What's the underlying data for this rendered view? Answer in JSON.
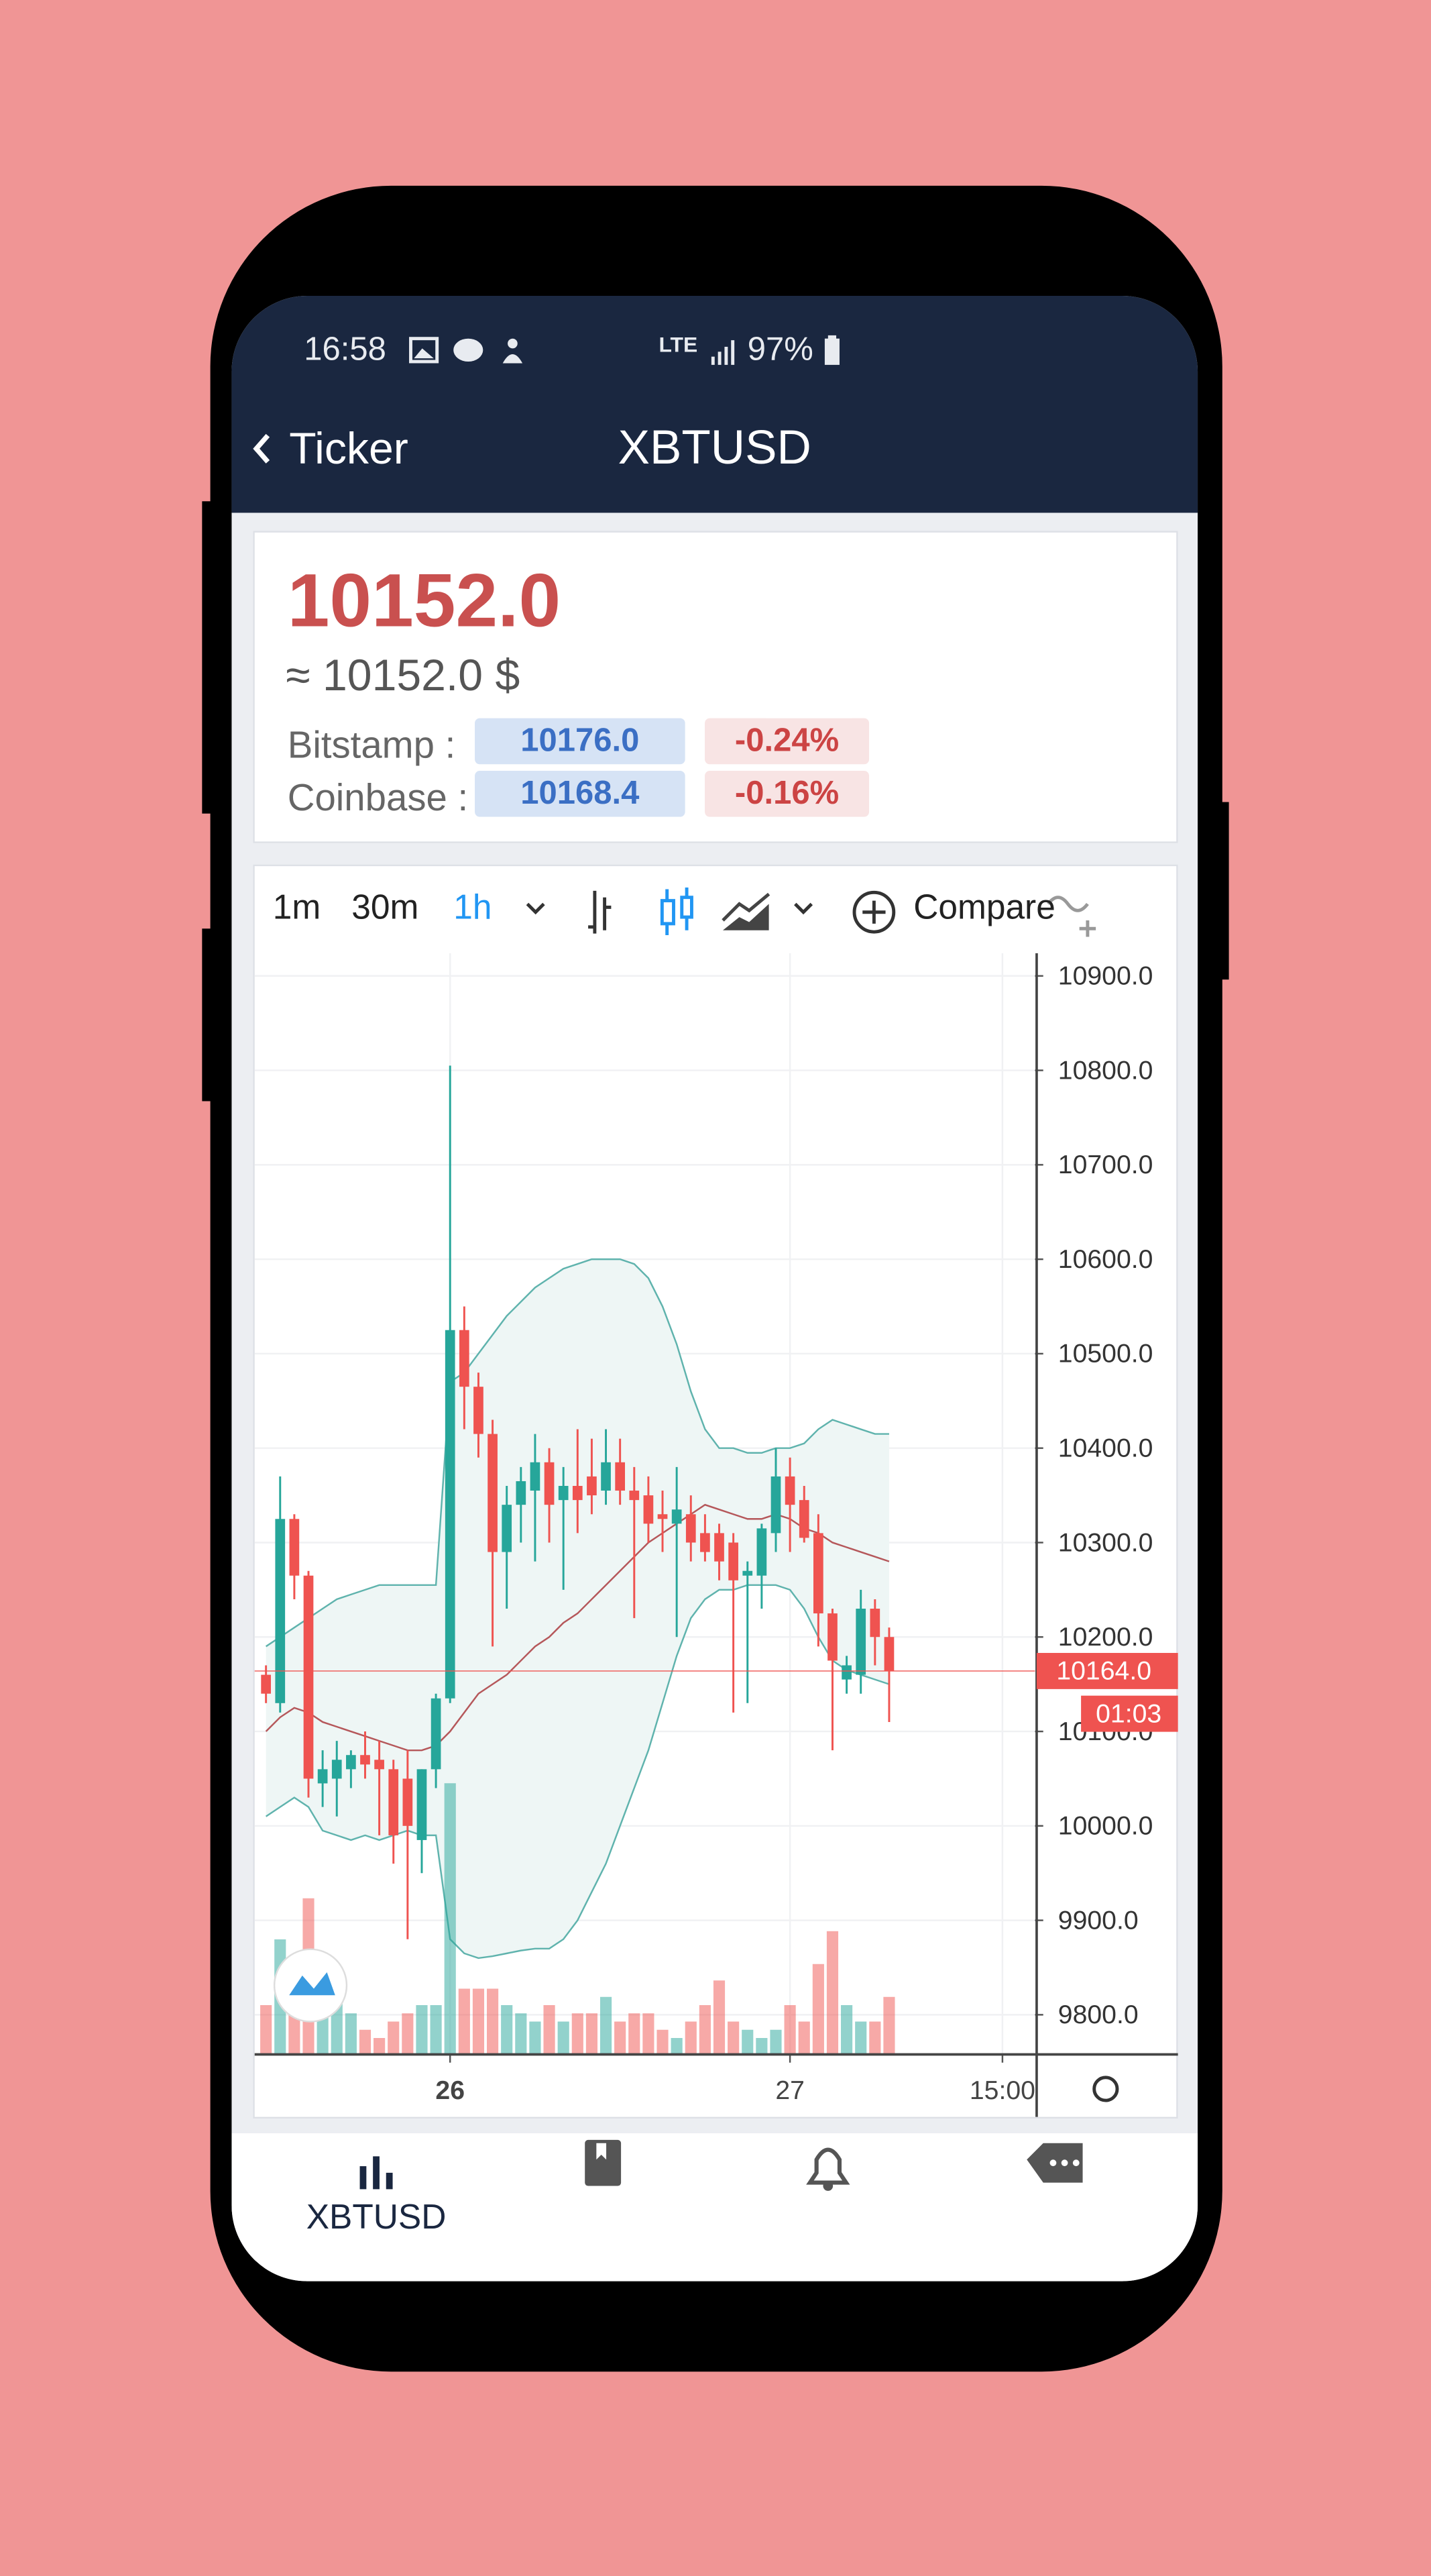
{
  "status_bar": {
    "time": "16:58",
    "network": "LTE",
    "battery": "97%"
  },
  "header": {
    "back": "Ticker",
    "title": "XBTUSD"
  },
  "price_panel": {
    "last": "10152.0",
    "usd": "≈ 10152.0 $",
    "exchanges": [
      {
        "name": "Bitstamp :",
        "price": "10176.0",
        "change": "-0.24%"
      },
      {
        "name": "Coinbase :",
        "price": "10168.4",
        "change": "-0.16%"
      }
    ]
  },
  "toolbar": {
    "intervals": [
      "1m",
      "30m",
      "1h"
    ],
    "active_interval": 2,
    "compare": "Compare"
  },
  "chart_data": {
    "type": "candlestick",
    "x": [
      -13,
      -12,
      -11,
      -10,
      -9,
      -8,
      -7,
      -6,
      -5,
      -4,
      -3,
      -2,
      -1,
      0,
      1,
      2,
      3,
      4,
      5,
      6,
      7,
      8,
      9,
      10,
      11,
      12,
      13,
      14,
      15,
      16,
      17,
      18,
      19,
      20,
      21,
      22,
      23,
      24,
      25,
      26,
      27,
      28,
      29,
      30,
      31
    ],
    "open": [
      10160,
      10130,
      10325,
      10265,
      10045,
      10050,
      10060,
      10075,
      10070,
      10060,
      10050,
      9985,
      10060,
      10135,
      10525,
      10465,
      10415,
      10290,
      10340,
      10355,
      10385,
      10345,
      10360,
      10370,
      10355,
      10385,
      10355,
      10350,
      10330,
      10320,
      10330,
      10310,
      10310,
      10300,
      10265,
      10265,
      10310,
      10370,
      10345,
      10310,
      10225,
      10155,
      10160,
      10230,
      10200
    ],
    "high": [
      10170,
      10370,
      10330,
      10270,
      10080,
      10090,
      10080,
      10100,
      10090,
      10070,
      10080,
      10060,
      10140,
      10805,
      10550,
      10480,
      10430,
      10360,
      10380,
      10415,
      10400,
      10380,
      10420,
      10410,
      10420,
      10410,
      10380,
      10370,
      10355,
      10380,
      10350,
      10330,
      10320,
      10310,
      10280,
      10320,
      10400,
      10390,
      10360,
      10330,
      10230,
      10180,
      10250,
      10240,
      10210
    ],
    "low": [
      10130,
      10120,
      10240,
      10030,
      10020,
      10010,
      10040,
      10050,
      9990,
      9960,
      9880,
      9950,
      10040,
      10130,
      10420,
      10390,
      10190,
      10230,
      10300,
      10280,
      10300,
      10250,
      10310,
      10330,
      10340,
      10340,
      10220,
      10300,
      10290,
      10200,
      10280,
      10280,
      10260,
      10120,
      10130,
      10230,
      10290,
      10290,
      10300,
      10190,
      10080,
      10140,
      10140,
      10170,
      10110
    ],
    "close": [
      10140,
      10325,
      10265,
      10050,
      10060,
      10070,
      10075,
      10065,
      10060,
      9990,
      10000,
      10060,
      10135,
      10525,
      10465,
      10415,
      10290,
      10340,
      10365,
      10385,
      10340,
      10360,
      10345,
      10350,
      10385,
      10355,
      10345,
      10320,
      10325,
      10335,
      10300,
      10290,
      10280,
      10260,
      10270,
      10315,
      10370,
      10340,
      10305,
      10225,
      10175,
      10170,
      10230,
      10200,
      10164
    ],
    "volume": [
      30,
      70,
      55,
      95,
      25,
      40,
      25,
      15,
      10,
      20,
      25,
      30,
      30,
      165,
      40,
      40,
      40,
      30,
      25,
      20,
      30,
      20,
      25,
      25,
      35,
      20,
      25,
      25,
      15,
      10,
      20,
      30,
      45,
      20,
      15,
      10,
      15,
      30,
      20,
      55,
      75,
      30,
      20,
      20,
      35
    ],
    "bands": {
      "upper": [
        10190,
        10200,
        10210,
        10220,
        10230,
        10240,
        10245,
        10250,
        10255,
        10255,
        10255,
        10255,
        10255,
        10470,
        10480,
        10500,
        10520,
        10540,
        10555,
        10570,
        10580,
        10590,
        10595,
        10600,
        10600,
        10600,
        10595,
        10580,
        10550,
        10510,
        10460,
        10420,
        10400,
        10400,
        10395,
        10395,
        10400,
        10400,
        10405,
        10420,
        10430,
        10425,
        10420,
        10415,
        10415
      ],
      "middle": [
        10100,
        10115,
        10125,
        10120,
        10110,
        10105,
        10100,
        10095,
        10090,
        10085,
        10080,
        10080,
        10085,
        10100,
        10120,
        10140,
        10150,
        10160,
        10175,
        10190,
        10200,
        10215,
        10225,
        10240,
        10255,
        10270,
        10285,
        10300,
        10310,
        10320,
        10330,
        10340,
        10335,
        10330,
        10325,
        10325,
        10330,
        10325,
        10315,
        10310,
        10300,
        10295,
        10290,
        10285,
        10280
      ],
      "lower": [
        10010,
        10020,
        10030,
        10020,
        9995,
        9990,
        9985,
        9990,
        9985,
        9990,
        9995,
        9990,
        9990,
        9880,
        9865,
        9860,
        9862,
        9865,
        9868,
        9870,
        9870,
        9880,
        9900,
        9930,
        9960,
        10000,
        10040,
        10080,
        10130,
        10180,
        10220,
        10240,
        10250,
        10250,
        10255,
        10255,
        10255,
        10250,
        10230,
        10200,
        10175,
        10165,
        10160,
        10155,
        10150
      ]
    },
    "up_color": "#26a69a",
    "down_color": "#ef5350",
    "band_color": "#5fb3ad",
    "band_fill": "#eef6f5",
    "mid_color": "#b5575a",
    "xlim": [
      -13.8,
      41.3
    ],
    "xticks": [
      {
        "value": 0,
        "label": "26"
      },
      {
        "value": 24,
        "label": "27"
      },
      {
        "value": 39,
        "label": "15:00"
      }
    ],
    "ylim": [
      9758,
      10924
    ],
    "yticks": [
      {
        "value": 9800,
        "label": "9800.0"
      },
      {
        "value": 9900,
        "label": "9900.0"
      },
      {
        "value": 10000,
        "label": "10000.0"
      },
      {
        "value": 10100,
        "label": "10100.0"
      },
      {
        "value": 10200,
        "label": "10200.0"
      },
      {
        "value": 10300,
        "label": "10300.0"
      },
      {
        "value": 10400,
        "label": "10400.0"
      },
      {
        "value": 10500,
        "label": "10500.0"
      },
      {
        "value": 10600,
        "label": "10600.0"
      },
      {
        "value": 10700,
        "label": "10700.0"
      },
      {
        "value": 10800,
        "label": "10800.0"
      },
      {
        "value": 10900,
        "label": "10900.0"
      }
    ],
    "last_price": {
      "value": 10164,
      "label": "10164.0"
    },
    "countdown": "01:03",
    "grid": true
  },
  "bottom_nav": {
    "items": [
      {
        "label": "XBTUSD"
      }
    ]
  }
}
